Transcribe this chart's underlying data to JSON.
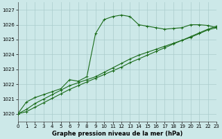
{
  "title": "Graphe pression niveau de la mer (hPa)",
  "bg_color": "#cce8e8",
  "grid_color": "#aacccc",
  "line_color": "#1a6b1a",
  "x_min": 0,
  "x_max": 23,
  "y_min": 1019.5,
  "y_max": 1027.5,
  "yticks": [
    1020,
    1021,
    1022,
    1023,
    1024,
    1025,
    1026,
    1027
  ],
  "xticks": [
    0,
    1,
    2,
    3,
    4,
    5,
    6,
    7,
    8,
    9,
    10,
    11,
    12,
    13,
    14,
    15,
    16,
    17,
    18,
    19,
    20,
    21,
    22,
    23
  ],
  "series1_x": [
    0,
    1,
    2,
    3,
    4,
    5,
    6,
    7,
    8,
    9,
    10,
    11,
    12,
    13,
    14,
    15,
    16,
    17,
    18,
    19,
    20,
    21,
    22,
    23
  ],
  "series1_y": [
    1020.0,
    1020.8,
    1021.1,
    1021.3,
    1021.5,
    1021.7,
    1022.3,
    1022.2,
    1022.5,
    1025.4,
    1026.35,
    1026.55,
    1026.65,
    1026.55,
    1026.0,
    1025.9,
    1025.8,
    1025.7,
    1025.75,
    1025.8,
    1026.0,
    1026.0,
    1025.95,
    1025.8
  ],
  "series2_x": [
    0,
    1,
    2,
    3,
    4,
    5,
    6,
    7,
    8,
    9,
    10,
    11,
    12,
    13,
    14,
    15,
    16,
    17,
    18,
    19,
    20,
    21,
    22,
    23
  ],
  "series2_y": [
    1020.0,
    1020.3,
    1020.7,
    1021.0,
    1021.3,
    1021.6,
    1021.9,
    1022.1,
    1022.3,
    1022.5,
    1022.8,
    1023.1,
    1023.4,
    1023.7,
    1023.95,
    1024.15,
    1024.35,
    1024.55,
    1024.75,
    1024.95,
    1025.15,
    1025.4,
    1025.65,
    1025.8
  ],
  "series3_x": [
    0,
    1,
    2,
    3,
    4,
    5,
    6,
    7,
    8,
    9,
    10,
    11,
    12,
    13,
    14,
    15,
    16,
    17,
    18,
    19,
    20,
    21,
    22,
    23
  ],
  "series3_y": [
    1020.0,
    1020.15,
    1020.45,
    1020.75,
    1021.05,
    1021.35,
    1021.65,
    1021.9,
    1022.15,
    1022.4,
    1022.65,
    1022.9,
    1023.15,
    1023.45,
    1023.7,
    1023.95,
    1024.2,
    1024.45,
    1024.7,
    1024.95,
    1025.2,
    1025.45,
    1025.7,
    1025.9
  ],
  "marker": "+",
  "marker_size": 3,
  "linewidth": 0.8,
  "xlabel_fontsize": 6,
  "tick_fontsize": 5
}
